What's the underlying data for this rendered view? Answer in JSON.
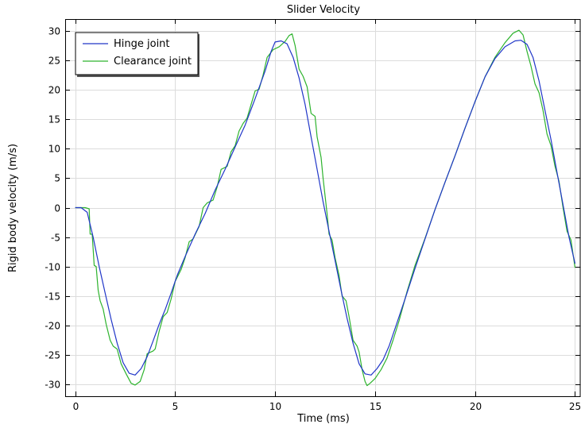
{
  "chart_data": {
    "type": "line",
    "title": "Slider Velocity",
    "xlabel": "Time (ms)",
    "ylabel": "Rigid body velocity (m/s)",
    "xlim": [
      -0.5,
      25.3
    ],
    "ylim": [
      -32,
      32
    ],
    "xticks": [
      0,
      5,
      10,
      15,
      20,
      25
    ],
    "yticks": [
      -30,
      -25,
      -20,
      -15,
      -10,
      -5,
      0,
      5,
      10,
      15,
      20,
      25,
      30
    ],
    "grid": true,
    "legend_position": "top-left",
    "series": [
      {
        "name": "Hinge joint",
        "color": "#2036c8",
        "points": [
          [
            0,
            0
          ],
          [
            0.3,
            0
          ],
          [
            0.6,
            -0.8
          ],
          [
            0.9,
            -5
          ],
          [
            1.2,
            -10
          ],
          [
            1.5,
            -14.5
          ],
          [
            1.8,
            -19
          ],
          [
            2.1,
            -23
          ],
          [
            2.4,
            -26.3
          ],
          [
            2.7,
            -28.1
          ],
          [
            3.0,
            -28.4
          ],
          [
            3.3,
            -27.3
          ],
          [
            3.6,
            -25.3
          ],
          [
            3.9,
            -22.6
          ],
          [
            4.2,
            -19.8
          ],
          [
            4.5,
            -17.3
          ],
          [
            4.8,
            -14.5
          ],
          [
            5.1,
            -11.5
          ],
          [
            5.5,
            -8.3
          ],
          [
            6.0,
            -4.5
          ],
          [
            6.5,
            -1
          ],
          [
            7.0,
            3
          ],
          [
            7.5,
            6.5
          ],
          [
            8.0,
            10.3
          ],
          [
            8.5,
            14
          ],
          [
            9.0,
            18.5
          ],
          [
            9.5,
            23.2
          ],
          [
            9.8,
            26.5
          ],
          [
            10.0,
            28.1
          ],
          [
            10.3,
            28.3
          ],
          [
            10.6,
            27.8
          ],
          [
            10.9,
            25.5
          ],
          [
            11.2,
            22
          ],
          [
            11.5,
            17.5
          ],
          [
            11.8,
            12
          ],
          [
            12.1,
            6.5
          ],
          [
            12.4,
            1
          ],
          [
            12.7,
            -4
          ],
          [
            13.0,
            -9
          ],
          [
            13.3,
            -14
          ],
          [
            13.6,
            -18.8
          ],
          [
            13.9,
            -23
          ],
          [
            14.2,
            -26.5
          ],
          [
            14.5,
            -28.2
          ],
          [
            14.8,
            -28.4
          ],
          [
            15.1,
            -27.3
          ],
          [
            15.4,
            -25.8
          ],
          [
            15.7,
            -23.5
          ],
          [
            16.0,
            -20.5
          ],
          [
            16.5,
            -15.5
          ],
          [
            17.0,
            -10.3
          ],
          [
            17.5,
            -5.3
          ],
          [
            18.0,
            -0.3
          ],
          [
            18.5,
            4.3
          ],
          [
            19.0,
            8.8
          ],
          [
            19.5,
            13.5
          ],
          [
            20.0,
            18
          ],
          [
            20.5,
            22.2
          ],
          [
            21.0,
            25.3
          ],
          [
            21.5,
            27.3
          ],
          [
            22.0,
            28.3
          ],
          [
            22.3,
            28.4
          ],
          [
            22.6,
            27.7
          ],
          [
            22.9,
            25.5
          ],
          [
            23.2,
            21.5
          ],
          [
            23.5,
            16.5
          ],
          [
            23.8,
            11.5
          ],
          [
            24.1,
            6
          ],
          [
            24.4,
            0.5
          ],
          [
            24.7,
            -5
          ],
          [
            25.0,
            -9.5
          ]
        ]
      },
      {
        "name": "Clearance joint",
        "color": "#2db32d",
        "points": [
          [
            0,
            0
          ],
          [
            0.5,
            0
          ],
          [
            0.7,
            -0.2
          ],
          [
            0.75,
            -4.5
          ],
          [
            0.85,
            -4.5
          ],
          [
            0.95,
            -9.8
          ],
          [
            1.05,
            -10
          ],
          [
            1.15,
            -14
          ],
          [
            1.25,
            -15.8
          ],
          [
            1.4,
            -17.2
          ],
          [
            1.55,
            -19.8
          ],
          [
            1.75,
            -22.5
          ],
          [
            1.9,
            -23.5
          ],
          [
            2.1,
            -24
          ],
          [
            2.3,
            -26.5
          ],
          [
            2.55,
            -28.2
          ],
          [
            2.8,
            -29.8
          ],
          [
            3.0,
            -30.1
          ],
          [
            3.25,
            -29.5
          ],
          [
            3.45,
            -27.5
          ],
          [
            3.6,
            -24.8
          ],
          [
            3.9,
            -24.3
          ],
          [
            4.0,
            -24
          ],
          [
            4.2,
            -21
          ],
          [
            4.4,
            -18.5
          ],
          [
            4.6,
            -17.8
          ],
          [
            4.8,
            -15.5
          ],
          [
            5.0,
            -12.5
          ],
          [
            5.3,
            -10.5
          ],
          [
            5.5,
            -8.5
          ],
          [
            5.7,
            -5.8
          ],
          [
            5.9,
            -5.3
          ],
          [
            6.2,
            -3.2
          ],
          [
            6.4,
            0
          ],
          [
            6.6,
            0.8
          ],
          [
            6.9,
            1.3
          ],
          [
            7.1,
            3.5
          ],
          [
            7.3,
            6.5
          ],
          [
            7.6,
            7
          ],
          [
            7.8,
            9.5
          ],
          [
            8.0,
            10.5
          ],
          [
            8.2,
            13
          ],
          [
            8.4,
            14.3
          ],
          [
            8.6,
            15.2
          ],
          [
            8.8,
            17.5
          ],
          [
            9.0,
            19.8
          ],
          [
            9.2,
            20.1
          ],
          [
            9.4,
            22.5
          ],
          [
            9.6,
            25.5
          ],
          [
            9.9,
            26.8
          ],
          [
            10.2,
            27.3
          ],
          [
            10.5,
            28.2
          ],
          [
            10.7,
            29.2
          ],
          [
            10.85,
            29.5
          ],
          [
            11.0,
            27.5
          ],
          [
            11.2,
            23.5
          ],
          [
            11.4,
            22.3
          ],
          [
            11.6,
            20.5
          ],
          [
            11.8,
            16
          ],
          [
            12.0,
            15.5
          ],
          [
            12.1,
            12
          ],
          [
            12.3,
            8.5
          ],
          [
            12.4,
            5
          ],
          [
            12.5,
            2
          ],
          [
            12.6,
            -1
          ],
          [
            12.7,
            -4.5
          ],
          [
            12.85,
            -5.5
          ],
          [
            13.0,
            -8.5
          ],
          [
            13.2,
            -11.5
          ],
          [
            13.35,
            -15
          ],
          [
            13.55,
            -15.8
          ],
          [
            13.7,
            -18.5
          ],
          [
            13.9,
            -22.5
          ],
          [
            14.1,
            -23.5
          ],
          [
            14.2,
            -24.5
          ],
          [
            14.35,
            -27.5
          ],
          [
            14.5,
            -29.5
          ],
          [
            14.6,
            -30.2
          ],
          [
            14.75,
            -29.8
          ],
          [
            15.0,
            -29
          ],
          [
            15.3,
            -27.5
          ],
          [
            15.6,
            -25.5
          ],
          [
            15.9,
            -22.5
          ],
          [
            16.2,
            -19.2
          ],
          [
            16.6,
            -14.2
          ],
          [
            17.0,
            -9.8
          ],
          [
            17.5,
            -5.2
          ],
          [
            18.0,
            -0.3
          ],
          [
            18.5,
            4.3
          ],
          [
            19.0,
            8.8
          ],
          [
            19.5,
            13.5
          ],
          [
            20.0,
            18
          ],
          [
            20.5,
            22.2
          ],
          [
            21.0,
            25.5
          ],
          [
            21.5,
            28
          ],
          [
            21.9,
            29.6
          ],
          [
            22.2,
            30.1
          ],
          [
            22.4,
            29.3
          ],
          [
            22.6,
            26.5
          ],
          [
            22.8,
            24
          ],
          [
            23.0,
            21
          ],
          [
            23.2,
            19.5
          ],
          [
            23.4,
            16.5
          ],
          [
            23.6,
            12.5
          ],
          [
            23.8,
            10.5
          ],
          [
            24.0,
            7
          ],
          [
            24.2,
            4.5
          ],
          [
            24.4,
            0
          ],
          [
            24.6,
            -4
          ],
          [
            24.8,
            -5.5
          ],
          [
            25.0,
            -10.2
          ]
        ]
      }
    ]
  }
}
